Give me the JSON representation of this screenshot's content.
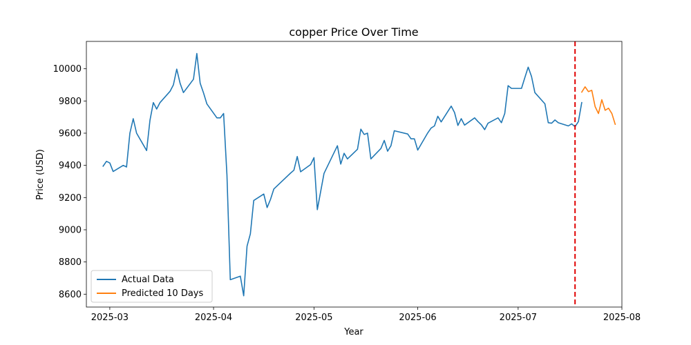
{
  "chart_data": {
    "type": "line",
    "title": "copper Price Over Time",
    "xlabel": "Year",
    "ylabel": "Price (USD)",
    "xlim": [
      "2025-02-22",
      "2025-08-01"
    ],
    "ylim": [
      8520,
      10170
    ],
    "x_ticks": [
      "2025-03-01",
      "2025-04-01",
      "2025-05-01",
      "2025-06-01",
      "2025-07-01",
      "2025-08-01"
    ],
    "x_tick_labels": [
      "2025-03",
      "2025-04",
      "2025-05",
      "2025-06",
      "2025-07",
      "2025-08"
    ],
    "y_ticks": [
      8600,
      8800,
      9000,
      9200,
      9400,
      9600,
      9800,
      10000
    ],
    "y_tick_labels": [
      "8600",
      "8800",
      "9000",
      "9200",
      "9400",
      "9600",
      "9800",
      "10000"
    ],
    "grid": false,
    "legend_position": "lower-left",
    "forecast_start": "2025-07-18",
    "series": [
      {
        "name": "Actual Data",
        "color": "#1f77b4",
        "points": [
          [
            "2025-02-27",
            9395
          ],
          [
            "2025-02-28",
            9425
          ],
          [
            "2025-03-01",
            9415
          ],
          [
            "2025-03-02",
            9362
          ],
          [
            "2025-03-05",
            9400
          ],
          [
            "2025-03-06",
            9390
          ],
          [
            "2025-03-07",
            9600
          ],
          [
            "2025-03-08",
            9690
          ],
          [
            "2025-03-09",
            9600
          ],
          [
            "2025-03-12",
            9492
          ],
          [
            "2025-03-13",
            9680
          ],
          [
            "2025-03-14",
            9790
          ],
          [
            "2025-03-15",
            9750
          ],
          [
            "2025-03-16",
            9790
          ],
          [
            "2025-03-19",
            9860
          ],
          [
            "2025-03-20",
            9900
          ],
          [
            "2025-03-21",
            9998
          ],
          [
            "2025-03-22",
            9910
          ],
          [
            "2025-03-23",
            9852
          ],
          [
            "2025-03-26",
            9935
          ],
          [
            "2025-03-27",
            10095
          ],
          [
            "2025-03-28",
            9910
          ],
          [
            "2025-03-29",
            9850
          ],
          [
            "2025-03-30",
            9782
          ],
          [
            "2025-04-02",
            9695
          ],
          [
            "2025-04-03",
            9695
          ],
          [
            "2025-04-04",
            9722
          ],
          [
            "2025-04-05",
            9340
          ],
          [
            "2025-04-06",
            8690
          ],
          [
            "2025-04-09",
            8712
          ],
          [
            "2025-04-10",
            8590
          ],
          [
            "2025-04-11",
            8898
          ],
          [
            "2025-04-12",
            8975
          ],
          [
            "2025-04-13",
            9182
          ],
          [
            "2025-04-16",
            9222
          ],
          [
            "2025-04-17",
            9138
          ],
          [
            "2025-04-18",
            9188
          ],
          [
            "2025-04-19",
            9253
          ],
          [
            "2025-04-24",
            9352
          ],
          [
            "2025-04-25",
            9370
          ],
          [
            "2025-04-26",
            9455
          ],
          [
            "2025-04-27",
            9360
          ],
          [
            "2025-04-30",
            9405
          ],
          [
            "2025-05-01",
            9448
          ],
          [
            "2025-05-02",
            9125
          ],
          [
            "2025-05-04",
            9350
          ],
          [
            "2025-05-08",
            9522
          ],
          [
            "2025-05-09",
            9408
          ],
          [
            "2025-05-10",
            9475
          ],
          [
            "2025-05-11",
            9440
          ],
          [
            "2025-05-14",
            9500
          ],
          [
            "2025-05-15",
            9625
          ],
          [
            "2025-05-16",
            9592
          ],
          [
            "2025-05-17",
            9600
          ],
          [
            "2025-05-18",
            9440
          ],
          [
            "2025-05-21",
            9505
          ],
          [
            "2025-05-22",
            9555
          ],
          [
            "2025-05-23",
            9488
          ],
          [
            "2025-05-24",
            9522
          ],
          [
            "2025-05-25",
            9615
          ],
          [
            "2025-05-29",
            9595
          ],
          [
            "2025-05-30",
            9565
          ],
          [
            "2025-05-31",
            9565
          ],
          [
            "2025-06-01",
            9495
          ],
          [
            "2025-06-04",
            9602
          ],
          [
            "2025-06-05",
            9632
          ],
          [
            "2025-06-06",
            9645
          ],
          [
            "2025-06-07",
            9705
          ],
          [
            "2025-06-08",
            9670
          ],
          [
            "2025-06-11",
            9768
          ],
          [
            "2025-06-12",
            9728
          ],
          [
            "2025-06-13",
            9648
          ],
          [
            "2025-06-14",
            9690
          ],
          [
            "2025-06-15",
            9650
          ],
          [
            "2025-06-18",
            9695
          ],
          [
            "2025-06-19",
            9672
          ],
          [
            "2025-06-20",
            9652
          ],
          [
            "2025-06-21",
            9622
          ],
          [
            "2025-06-22",
            9662
          ],
          [
            "2025-06-25",
            9695
          ],
          [
            "2025-06-26",
            9665
          ],
          [
            "2025-06-27",
            9722
          ],
          [
            "2025-06-28",
            9895
          ],
          [
            "2025-06-29",
            9878
          ],
          [
            "2025-07-02",
            9878
          ],
          [
            "2025-07-03",
            9945
          ],
          [
            "2025-07-04",
            10010
          ],
          [
            "2025-07-05",
            9952
          ],
          [
            "2025-07-06",
            9852
          ],
          [
            "2025-07-09",
            9782
          ],
          [
            "2025-07-10",
            9665
          ],
          [
            "2025-07-11",
            9662
          ],
          [
            "2025-07-12",
            9682
          ],
          [
            "2025-07-13",
            9665
          ],
          [
            "2025-07-16",
            9645
          ],
          [
            "2025-07-17",
            9658
          ],
          [
            "2025-07-18",
            9640
          ],
          [
            "2025-07-19",
            9672
          ],
          [
            "2025-07-20",
            9790
          ]
        ]
      },
      {
        "name": "Predicted 10 Days",
        "color": "#ff7f0e",
        "points": [
          [
            "2025-07-20",
            9855
          ],
          [
            "2025-07-21",
            9888
          ],
          [
            "2025-07-22",
            9858
          ],
          [
            "2025-07-23",
            9866
          ],
          [
            "2025-07-24",
            9765
          ],
          [
            "2025-07-25",
            9722
          ],
          [
            "2025-07-26",
            9808
          ],
          [
            "2025-07-27",
            9742
          ],
          [
            "2025-07-28",
            9755
          ],
          [
            "2025-07-29",
            9722
          ],
          [
            "2025-07-30",
            9655
          ]
        ]
      }
    ]
  }
}
